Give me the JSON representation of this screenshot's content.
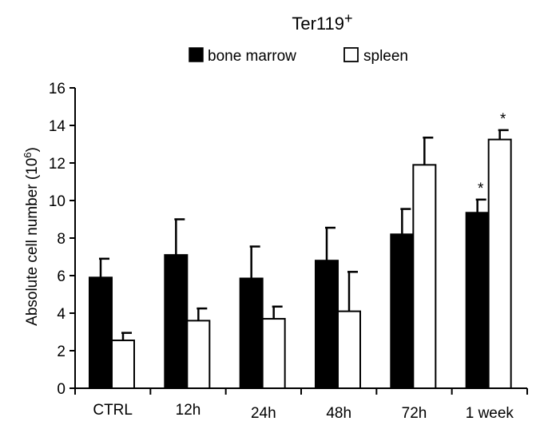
{
  "chart_data": {
    "type": "bar",
    "title": "Ter119",
    "title_superscript": "+",
    "ylabel": "Absolute cell number (10",
    "ylabel_superscript": "6",
    "ylabel_suffix": ")",
    "xlabel": "",
    "ylim": [
      0,
      16
    ],
    "yticks": [
      "0",
      "2",
      "4",
      "6",
      "8",
      "10",
      "12",
      "14",
      "16"
    ],
    "categories": [
      "CTRL",
      "12h",
      "24h",
      "48h",
      "72h",
      "1 week"
    ],
    "series": [
      {
        "name": "bone marrow",
        "color": "#000000",
        "values": [
          5.9,
          7.1,
          5.85,
          6.8,
          8.2,
          9.35
        ],
        "errors": [
          1.0,
          1.9,
          1.7,
          1.75,
          1.35,
          0.7
        ],
        "significance": [
          "",
          "",
          "",
          "",
          "",
          "*"
        ]
      },
      {
        "name": "spleen",
        "color": "#ffffff",
        "values": [
          2.55,
          3.6,
          3.7,
          4.1,
          11.9,
          13.25
        ],
        "errors": [
          0.4,
          0.65,
          0.65,
          2.1,
          1.45,
          0.5
        ],
        "significance": [
          "",
          "",
          "",
          "",
          "",
          "*"
        ]
      }
    ],
    "legend_position": "top-center",
    "grid": false
  }
}
